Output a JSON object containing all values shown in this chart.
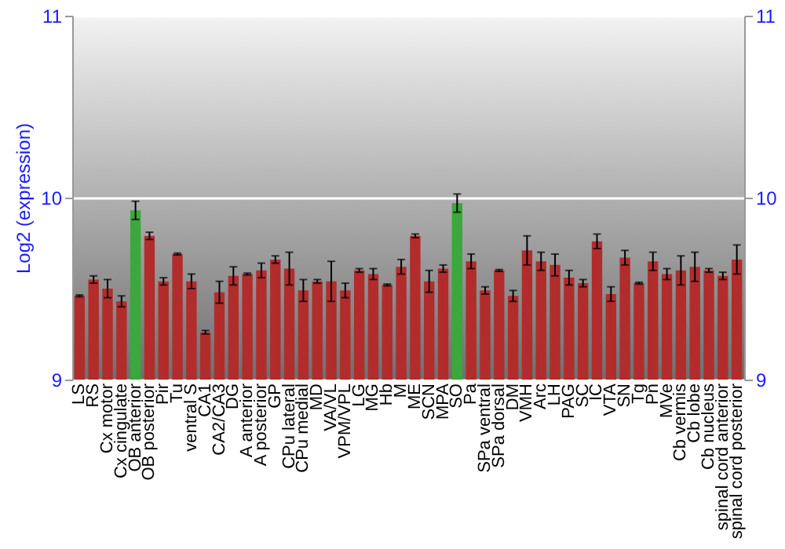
{
  "chart_data": {
    "type": "bar",
    "ylabel": "Log2 (expression)",
    "categories": [
      "LS",
      "RS",
      "Cx motor",
      "Cx cingulate",
      "OB anterior",
      "OB posterior",
      "Pir",
      "Tu",
      "ventral S",
      "CA1",
      "CA2/CA3",
      "DG",
      "A anterior",
      "A posterior",
      "GP",
      "CPu lateral",
      "CPu medial",
      "MD",
      "VA/VL",
      "VPM/VPL",
      "LG",
      "MG",
      "Hb",
      "M",
      "ME",
      "SCN",
      "MPA",
      "SO",
      "Pa",
      "SPa ventral",
      "SPa dorsal",
      "DM",
      "VMH",
      "Arc",
      "LH",
      "PAG",
      "SC",
      "IC",
      "VTA",
      "SN",
      "Tg",
      "Pn",
      "MVe",
      "Cb vermis",
      "Cb lobe",
      "Cb nucleus",
      "spinal cord anterior",
      "spinal cord posterior"
    ],
    "values": [
      9.46,
      9.55,
      9.5,
      9.43,
      9.93,
      9.79,
      9.54,
      9.69,
      9.54,
      9.26,
      9.48,
      9.57,
      9.58,
      9.6,
      9.66,
      9.61,
      9.49,
      9.54,
      9.54,
      9.49,
      9.6,
      9.58,
      9.52,
      9.62,
      9.79,
      9.54,
      9.61,
      9.97,
      9.65,
      9.49,
      9.6,
      9.46,
      9.71,
      9.65,
      9.63,
      9.56,
      9.53,
      9.76,
      9.47,
      9.67,
      9.53,
      9.65,
      9.58,
      9.6,
      9.62,
      9.6,
      9.57,
      9.66
    ],
    "errors": [
      0.005,
      0.02,
      0.05,
      0.03,
      0.05,
      0.02,
      0.02,
      0.005,
      0.04,
      0.01,
      0.06,
      0.05,
      0.005,
      0.04,
      0.02,
      0.09,
      0.06,
      0.01,
      0.11,
      0.04,
      0.01,
      0.03,
      0.005,
      0.04,
      0.01,
      0.06,
      0.02,
      0.05,
      0.04,
      0.02,
      0.005,
      0.03,
      0.08,
      0.05,
      0.06,
      0.04,
      0.02,
      0.04,
      0.04,
      0.04,
      0.005,
      0.05,
      0.03,
      0.08,
      0.08,
      0.01,
      0.02,
      0.08
    ],
    "colors": [
      "#b22c2c",
      "#b22c2c",
      "#b22c2c",
      "#b22c2c",
      "#3aa83a",
      "#b22c2c",
      "#b22c2c",
      "#b22c2c",
      "#b22c2c",
      "#b22c2c",
      "#b22c2c",
      "#b22c2c",
      "#b22c2c",
      "#b22c2c",
      "#b22c2c",
      "#b22c2c",
      "#b22c2c",
      "#b22c2c",
      "#b22c2c",
      "#b22c2c",
      "#b22c2c",
      "#b22c2c",
      "#b22c2c",
      "#b22c2c",
      "#b22c2c",
      "#b22c2c",
      "#b22c2c",
      "#3aa83a",
      "#b22c2c",
      "#b22c2c",
      "#b22c2c",
      "#b22c2c",
      "#b22c2c",
      "#b22c2c",
      "#b22c2c",
      "#b22c2c",
      "#b22c2c",
      "#b22c2c",
      "#b22c2c",
      "#b22c2c",
      "#b22c2c",
      "#b22c2c",
      "#b22c2c",
      "#b22c2c",
      "#b22c2c",
      "#b22c2c",
      "#b22c2c",
      "#b22c2c"
    ],
    "ylim": [
      9,
      11
    ],
    "yticks": [
      9,
      10,
      11
    ],
    "y2lim": [
      9,
      11
    ],
    "y2ticks": [
      9,
      10,
      11
    ],
    "grid": true
  }
}
